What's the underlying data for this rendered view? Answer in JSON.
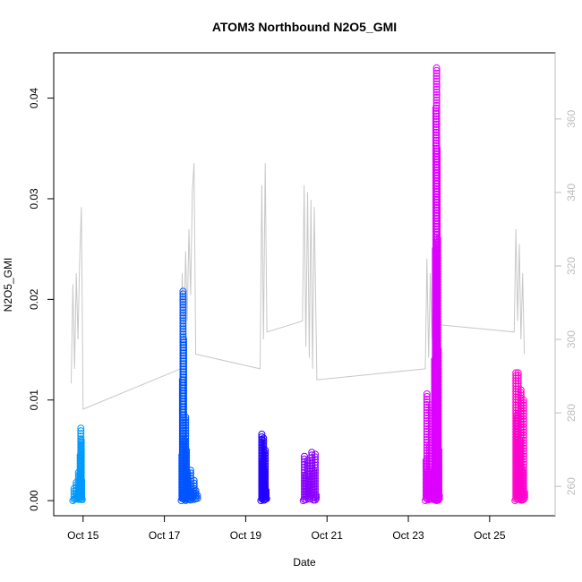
{
  "chart_data": {
    "type": "scatter",
    "title": "ATOM3 Northbound N2O5_GMI",
    "xlabel": "Date",
    "ylabel": "N2O5_GMI",
    "x_range": [
      "2017-10-14T06:40",
      "2017-10-26T14:40"
    ],
    "ylim": [
      -0.0015,
      0.0445
    ],
    "y_ticks": [
      0.0,
      0.01,
      0.02,
      0.03,
      0.04
    ],
    "y_tick_labels": [
      "0.00",
      "0.01",
      "0.02",
      "0.03",
      "0.04"
    ],
    "x_ticks": [
      "2017-10-15T00:00",
      "2017-10-17T00:00",
      "2017-10-19T00:00",
      "2017-10-21T00:00",
      "2017-10-23T00:00",
      "2017-10-25T00:00"
    ],
    "x_tick_labels": [
      "Oct 15",
      "Oct 17",
      "Oct 19",
      "Oct 21",
      "Oct 23",
      "Oct 25"
    ],
    "right_axis": {
      "ylim": [
        252,
        378
      ],
      "ticks": [
        260,
        280,
        300,
        320,
        340,
        360
      ],
      "tick_labels": [
        "260",
        "280",
        "300",
        "320",
        "340",
        "360"
      ],
      "color": "#bdbdbd"
    },
    "grid": false,
    "legend": "none",
    "series": [
      {
        "color": "#0099ff",
        "points": [
          {
            "t": "2017-10-14T18:00",
            "y": 0.0
          },
          {
            "t": "2017-10-14T18:40",
            "y": 0.0012
          },
          {
            "t": "2017-10-14T19:20",
            "y": 0.0002
          },
          {
            "t": "2017-10-14T20:00",
            "y": 0.0018
          },
          {
            "t": "2017-10-14T20:40",
            "y": 0.0005
          },
          {
            "t": "2017-10-14T21:20",
            "y": 0.0028
          },
          {
            "t": "2017-10-14T21:50",
            "y": 0.001
          },
          {
            "t": "2017-10-14T22:20",
            "y": 0.0045
          },
          {
            "t": "2017-10-14T22:40",
            "y": 0.0072
          },
          {
            "t": "2017-10-14T22:55",
            "y": 0.006
          },
          {
            "t": "2017-10-14T23:10",
            "y": 0.002
          },
          {
            "t": "2017-10-14T23:25",
            "y": 0.0001
          }
        ]
      },
      {
        "color": "#0055ff",
        "points": [
          {
            "t": "2017-10-17T10:00",
            "y": 0.0
          },
          {
            "t": "2017-10-17T10:20",
            "y": 0.0045
          },
          {
            "t": "2017-10-17T10:40",
            "y": 0.012
          },
          {
            "t": "2017-10-17T11:00",
            "y": 0.0208
          },
          {
            "t": "2017-10-17T11:20",
            "y": 0.016
          },
          {
            "t": "2017-10-17T11:40",
            "y": 0.006
          },
          {
            "t": "2017-10-17T12:00",
            "y": 0.001
          },
          {
            "t": "2017-10-17T12:30",
            "y": 0.0083
          },
          {
            "t": "2017-10-17T13:00",
            "y": 0.005
          },
          {
            "t": "2017-10-17T13:40",
            "y": 0.0028
          },
          {
            "t": "2017-10-17T14:30",
            "y": 0.0012
          },
          {
            "t": "2017-10-17T15:30",
            "y": 0.003
          },
          {
            "t": "2017-10-17T16:30",
            "y": 0.0008
          },
          {
            "t": "2017-10-17T17:30",
            "y": 0.002
          },
          {
            "t": "2017-10-17T18:30",
            "y": 0.001
          },
          {
            "t": "2017-10-17T19:30",
            "y": 0.0005
          }
        ]
      },
      {
        "color": "#2200ff",
        "points": [
          {
            "t": "2017-10-19T09:00",
            "y": 0.0
          },
          {
            "t": "2017-10-19T09:30",
            "y": 0.0066
          },
          {
            "t": "2017-10-19T10:00",
            "y": 0.004
          },
          {
            "t": "2017-10-19T10:30",
            "y": 0.0062
          },
          {
            "t": "2017-10-19T11:00",
            "y": 0.003
          },
          {
            "t": "2017-10-19T11:30",
            "y": 0.005
          },
          {
            "t": "2017-10-19T12:00",
            "y": 0.001
          },
          {
            "t": "2017-10-19T12:20",
            "y": 0.0002
          }
        ]
      },
      {
        "color": "#8800ff",
        "points": [
          {
            "t": "2017-10-20T10:00",
            "y": 0.0
          },
          {
            "t": "2017-10-20T10:40",
            "y": 0.0044
          },
          {
            "t": "2017-10-20T11:30",
            "y": 0.0025
          },
          {
            "t": "2017-10-20T12:30",
            "y": 0.004
          },
          {
            "t": "2017-10-20T13:30",
            "y": 0.0015
          },
          {
            "t": "2017-10-20T15:00",
            "y": 0.0048
          },
          {
            "t": "2017-10-20T16:00",
            "y": 0.003
          },
          {
            "t": "2017-10-20T17:00",
            "y": 0.0046
          },
          {
            "t": "2017-10-20T17:40",
            "y": 0.0005
          }
        ]
      },
      {
        "color": "#dd00ff",
        "points": [
          {
            "t": "2017-10-23T10:00",
            "y": 0.0
          },
          {
            "t": "2017-10-23T10:30",
            "y": 0.004
          },
          {
            "t": "2017-10-23T11:00",
            "y": 0.0106
          },
          {
            "t": "2017-10-23T11:40",
            "y": 0.003
          },
          {
            "t": "2017-10-23T12:30",
            "y": 0.0055
          },
          {
            "t": "2017-10-23T13:30",
            "y": 0.0095
          },
          {
            "t": "2017-10-23T14:30",
            "y": 0.002
          },
          {
            "t": "2017-10-23T15:30",
            "y": 0.014
          },
          {
            "t": "2017-10-23T16:00",
            "y": 0.025
          },
          {
            "t": "2017-10-23T16:20",
            "y": 0.039
          },
          {
            "t": "2017-10-23T16:40",
            "y": 0.043
          },
          {
            "t": "2017-10-23T17:00",
            "y": 0.035
          },
          {
            "t": "2017-10-23T17:20",
            "y": 0.026
          },
          {
            "t": "2017-10-23T17:40",
            "y": 0.015
          },
          {
            "t": "2017-10-23T18:00",
            "y": 0.005
          },
          {
            "t": "2017-10-23T18:20",
            "y": 0.0005
          }
        ]
      },
      {
        "color": "#ff00cc",
        "points": [
          {
            "t": "2017-10-25T15:00",
            "y": 0.0
          },
          {
            "t": "2017-10-25T15:30",
            "y": 0.0127
          },
          {
            "t": "2017-10-25T16:10",
            "y": 0.0085
          },
          {
            "t": "2017-10-25T16:50",
            "y": 0.0127
          },
          {
            "t": "2017-10-25T17:40",
            "y": 0.006
          },
          {
            "t": "2017-10-25T18:30",
            "y": 0.011
          },
          {
            "t": "2017-10-25T19:20",
            "y": 0.003
          },
          {
            "t": "2017-10-25T20:00",
            "y": 0.01
          },
          {
            "t": "2017-10-25T20:40",
            "y": 0.0008
          }
        ]
      }
    ],
    "secondary_line": {
      "color": "#c8c8c8",
      "points": [
        {
          "t": "2017-10-14T17:00",
          "y2": 288
        },
        {
          "t": "2017-10-14T18:00",
          "y2": 315
        },
        {
          "t": "2017-10-14T19:00",
          "y2": 292
        },
        {
          "t": "2017-10-14T20:00",
          "y2": 318
        },
        {
          "t": "2017-10-14T21:00",
          "y2": 300
        },
        {
          "t": "2017-10-14T22:00",
          "y2": 322
        },
        {
          "t": "2017-10-14T23:00",
          "y2": 336
        },
        {
          "t": "2017-10-15T00:00",
          "y2": 281
        },
        {
          "t": "2017-10-17T09:30",
          "y2": 292
        },
        {
          "t": "2017-10-17T10:30",
          "y2": 318
        },
        {
          "t": "2017-10-17T11:30",
          "y2": 300
        },
        {
          "t": "2017-10-17T12:30",
          "y2": 324
        },
        {
          "t": "2017-10-17T13:30",
          "y2": 305
        },
        {
          "t": "2017-10-17T14:30",
          "y2": 330
        },
        {
          "t": "2017-10-17T15:30",
          "y2": 312
        },
        {
          "t": "2017-10-17T16:30",
          "y2": 340
        },
        {
          "t": "2017-10-17T17:30",
          "y2": 348
        },
        {
          "t": "2017-10-17T18:30",
          "y2": 296
        },
        {
          "t": "2017-10-19T08:30",
          "y2": 292
        },
        {
          "t": "2017-10-19T09:30",
          "y2": 342
        },
        {
          "t": "2017-10-19T10:30",
          "y2": 300
        },
        {
          "t": "2017-10-19T11:30",
          "y2": 348
        },
        {
          "t": "2017-10-19T12:30",
          "y2": 302
        },
        {
          "t": "2017-10-20T09:30",
          "y2": 305
        },
        {
          "t": "2017-10-20T10:30",
          "y2": 342
        },
        {
          "t": "2017-10-20T11:30",
          "y2": 298
        },
        {
          "t": "2017-10-20T12:30",
          "y2": 340
        },
        {
          "t": "2017-10-20T13:30",
          "y2": 295
        },
        {
          "t": "2017-10-20T14:30",
          "y2": 338
        },
        {
          "t": "2017-10-20T15:30",
          "y2": 292
        },
        {
          "t": "2017-10-20T16:30",
          "y2": 336
        },
        {
          "t": "2017-10-20T18:00",
          "y2": 289
        },
        {
          "t": "2017-10-23T10:00",
          "y2": 292
        },
        {
          "t": "2017-10-23T11:00",
          "y2": 322
        },
        {
          "t": "2017-10-23T12:00",
          "y2": 295
        },
        {
          "t": "2017-10-23T13:00",
          "y2": 318
        },
        {
          "t": "2017-10-23T14:00",
          "y2": 300
        },
        {
          "t": "2017-10-23T15:00",
          "y2": 312
        },
        {
          "t": "2017-10-23T16:30",
          "y2": 302
        },
        {
          "t": "2017-10-23T17:30",
          "y2": 304
        },
        {
          "t": "2017-10-25T14:30",
          "y2": 302
        },
        {
          "t": "2017-10-25T15:30",
          "y2": 330
        },
        {
          "t": "2017-10-25T16:30",
          "y2": 305
        },
        {
          "t": "2017-10-25T17:30",
          "y2": 326
        },
        {
          "t": "2017-10-25T18:30",
          "y2": 300
        },
        {
          "t": "2017-10-25T19:30",
          "y2": 318
        },
        {
          "t": "2017-10-25T20:30",
          "y2": 296
        }
      ]
    }
  }
}
